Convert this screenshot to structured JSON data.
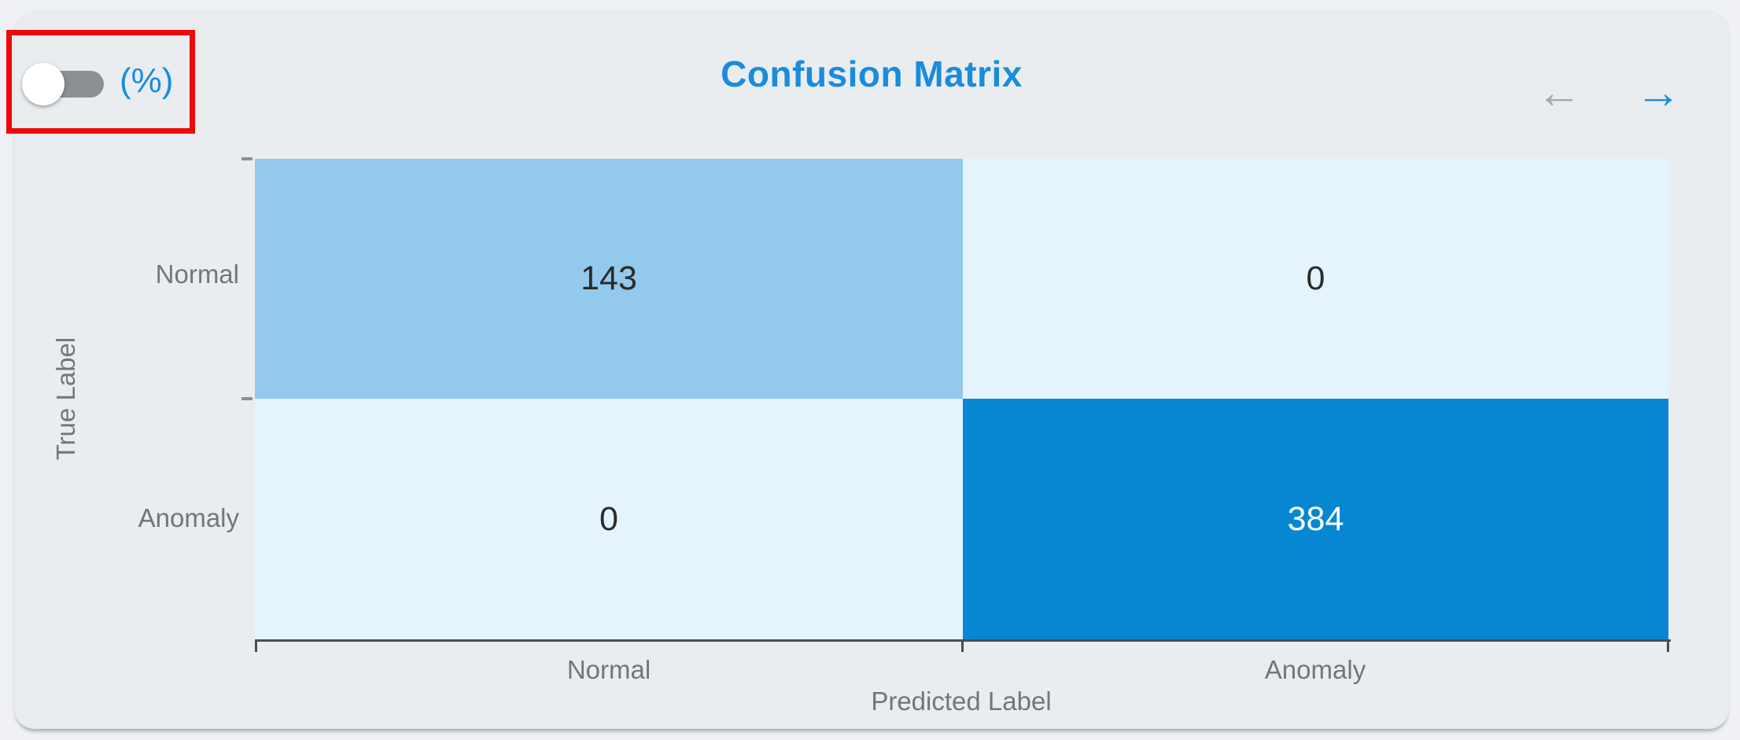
{
  "header": {
    "percent_toggle": {
      "label": "(%)",
      "state": "off"
    },
    "title": "Confusion Matrix",
    "nav": {
      "prev_icon": "←",
      "next_icon": "→"
    }
  },
  "chart_data": {
    "type": "heatmap",
    "title": "Confusion Matrix",
    "xlabel": "Predicted Label",
    "ylabel": "True Label",
    "x_categories": [
      "Normal",
      "Anomaly"
    ],
    "y_categories": [
      "Normal",
      "Anomaly"
    ],
    "values": [
      [
        143,
        0
      ],
      [
        0,
        384
      ]
    ],
    "value_unit": "count",
    "legend": "none",
    "grid": "off",
    "cell_colors": [
      [
        "#92c9ec",
        "#e5f3fc"
      ],
      [
        "#e5f3fc",
        "#0787d2"
      ]
    ],
    "cell_text_colors": [
      [
        "#2b2b2b",
        "#2b2b2b"
      ],
      [
        "#2b2b2b",
        "#ffffff"
      ]
    ]
  },
  "colors": {
    "accent_blue": "#1b8bdc",
    "disabled_gray": "#a3a8ad",
    "toggle_track": "#8d9093",
    "annotation_red": "#ee0a0a",
    "card_bg": "#e9edf0",
    "page_bg": "#eff1f6"
  }
}
